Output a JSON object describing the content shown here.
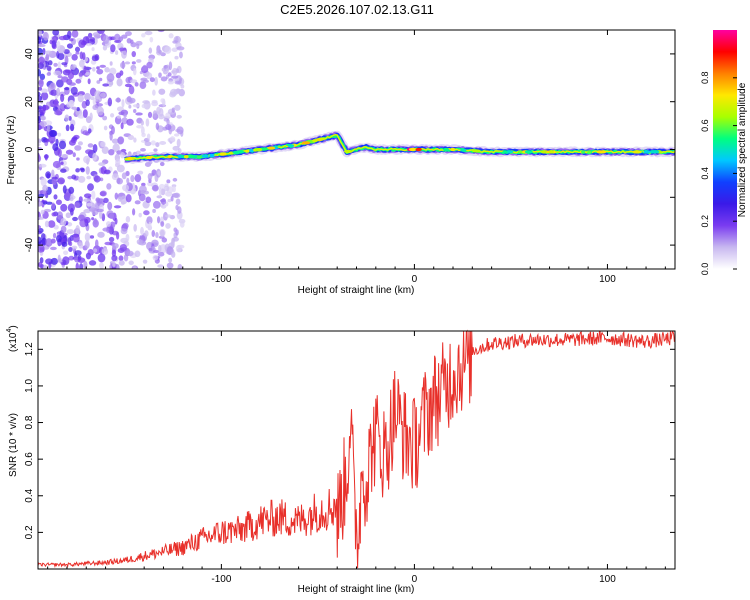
{
  "figure": {
    "title": "C2E5.2026.107.02.13.G11",
    "colors": {
      "snr_line": "#e8302a",
      "axis": "#000000",
      "background": "#ffffff"
    }
  },
  "chart_data": [
    {
      "type": "heatmap",
      "title": "C2E5.2026.107.02.13.G11",
      "xlabel": "Height of straight line (km)",
      "ylabel": "Frequency (Hz)",
      "xlim": [
        -195,
        135
      ],
      "ylim": [
        -50,
        50
      ],
      "x_ticks": [
        -100,
        0,
        100
      ],
      "x_tick_labels": [
        "-100",
        "0",
        "100"
      ],
      "y_ticks": [
        -40,
        -20,
        0,
        20,
        40
      ],
      "y_tick_labels": [
        "-40",
        "-20",
        "0",
        "20",
        "40"
      ],
      "colorbar": {
        "label": "Normalized spectral amplitude",
        "range": [
          0,
          1
        ],
        "ticks": [
          0,
          0.2,
          0.4,
          0.6,
          0.8
        ],
        "tick_labels": [
          "0.0",
          "0.2",
          "0.4",
          "0.6",
          "0.8"
        ],
        "colormap": [
          "#ffffff",
          "#c8b8f0",
          "#7a3cf0",
          "#3a1ae8",
          "#1040ff",
          "#00c8ff",
          "#00ff80",
          "#a8ff00",
          "#ffe800",
          "#ff8000",
          "#ff0000",
          "#ff00a0"
        ]
      },
      "signal_trace": {
        "x": [
          -150,
          -130,
          -110,
          -100,
          -90,
          -80,
          -70,
          -60,
          -50,
          -45,
          -40,
          -35,
          -30,
          -25,
          -20,
          -10,
          0,
          20,
          40,
          60,
          80,
          100,
          120,
          135
        ],
        "y": [
          -4,
          -3,
          -3,
          -2,
          -1,
          0,
          1,
          2,
          4,
          5,
          6,
          -1,
          0,
          1,
          0,
          0,
          0,
          0,
          -1,
          -1,
          -1,
          -1,
          -1,
          -1
        ]
      },
      "noise_region": {
        "x_range": [
          -195,
          -120
        ],
        "y_range": [
          -50,
          50
        ]
      }
    },
    {
      "type": "line",
      "xlabel": "Height of straight line (km)",
      "ylabel": "SNR (10 * v/v)",
      "scale_label": "(x10",
      "scale_exponent": "4",
      "scale_close": ")",
      "xlim": [
        -195,
        135
      ],
      "ylim": [
        0,
        1.3
      ],
      "x_ticks": [
        -100,
        0,
        100
      ],
      "x_tick_labels": [
        "-100",
        "0",
        "100"
      ],
      "y_ticks": [
        0.2,
        0.4,
        0.6,
        0.8,
        1.0,
        1.2
      ],
      "y_tick_labels": [
        "0.2",
        "0.4",
        "0.6",
        "0.8",
        "1.0",
        "1.2"
      ],
      "series": [
        {
          "name": "SNR",
          "x": [
            -195,
            -180,
            -160,
            -150,
            -140,
            -130,
            -120,
            -110,
            -100,
            -90,
            -80,
            -70,
            -60,
            -50,
            -45,
            -40,
            -35,
            -33,
            -31,
            -29,
            -27,
            -25,
            -22,
            -20,
            -15,
            -10,
            -5,
            0,
            5,
            10,
            15,
            20,
            25,
            30,
            40,
            50,
            60,
            80,
            100,
            120,
            135
          ],
          "y": [
            0.02,
            0.02,
            0.03,
            0.04,
            0.06,
            0.08,
            0.1,
            0.14,
            0.17,
            0.18,
            0.22,
            0.24,
            0.22,
            0.27,
            0.28,
            0.3,
            0.55,
            0.9,
            0.3,
            0.2,
            0.6,
            0.5,
            0.7,
            0.75,
            0.65,
            0.9,
            0.75,
            0.7,
            0.85,
            0.95,
            1.0,
            1.1,
            1.15,
            1.2,
            1.24,
            1.25,
            1.26,
            1.26,
            1.27,
            1.25,
            1.27
          ]
        }
      ]
    }
  ]
}
